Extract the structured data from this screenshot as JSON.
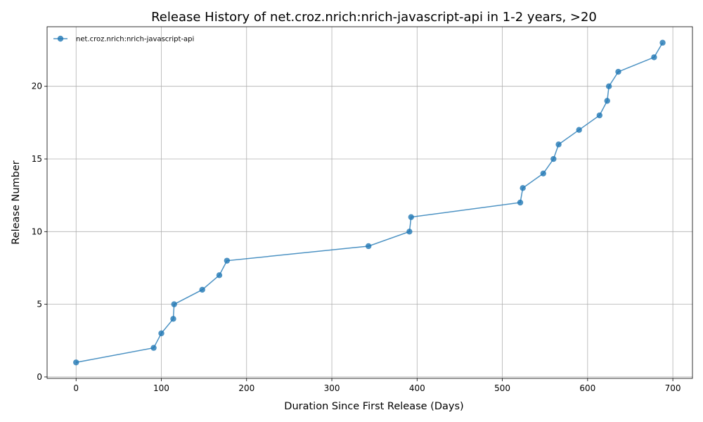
{
  "chart_data": {
    "type": "line",
    "title": "Release History of net.croz.nrich:nrich-javascript-api in 1-2 years, >20",
    "xlabel": "Duration Since First Release (Days)",
    "ylabel": "Release Number",
    "xlim": [
      -34,
      723
    ],
    "ylim": [
      -0.1,
      24.1
    ],
    "xticks": [
      0,
      100,
      200,
      300,
      400,
      500,
      600,
      700
    ],
    "yticks": [
      0,
      5,
      10,
      15,
      20
    ],
    "grid": true,
    "legend_position": "upper-left",
    "series": [
      {
        "name": "net.croz.nrich:nrich-javascript-api",
        "color": "#1f77b4",
        "marker": "circle",
        "x": [
          0,
          91,
          100,
          114,
          115,
          148,
          168,
          177,
          343,
          391,
          393,
          521,
          524,
          548,
          560,
          566,
          590,
          614,
          623,
          625,
          636,
          678,
          688
        ],
        "y": [
          1,
          2,
          3,
          4,
          5,
          6,
          7,
          8,
          9,
          10,
          11,
          12,
          13,
          14,
          15,
          16,
          17,
          18,
          19,
          20,
          21,
          22,
          23
        ]
      }
    ]
  }
}
